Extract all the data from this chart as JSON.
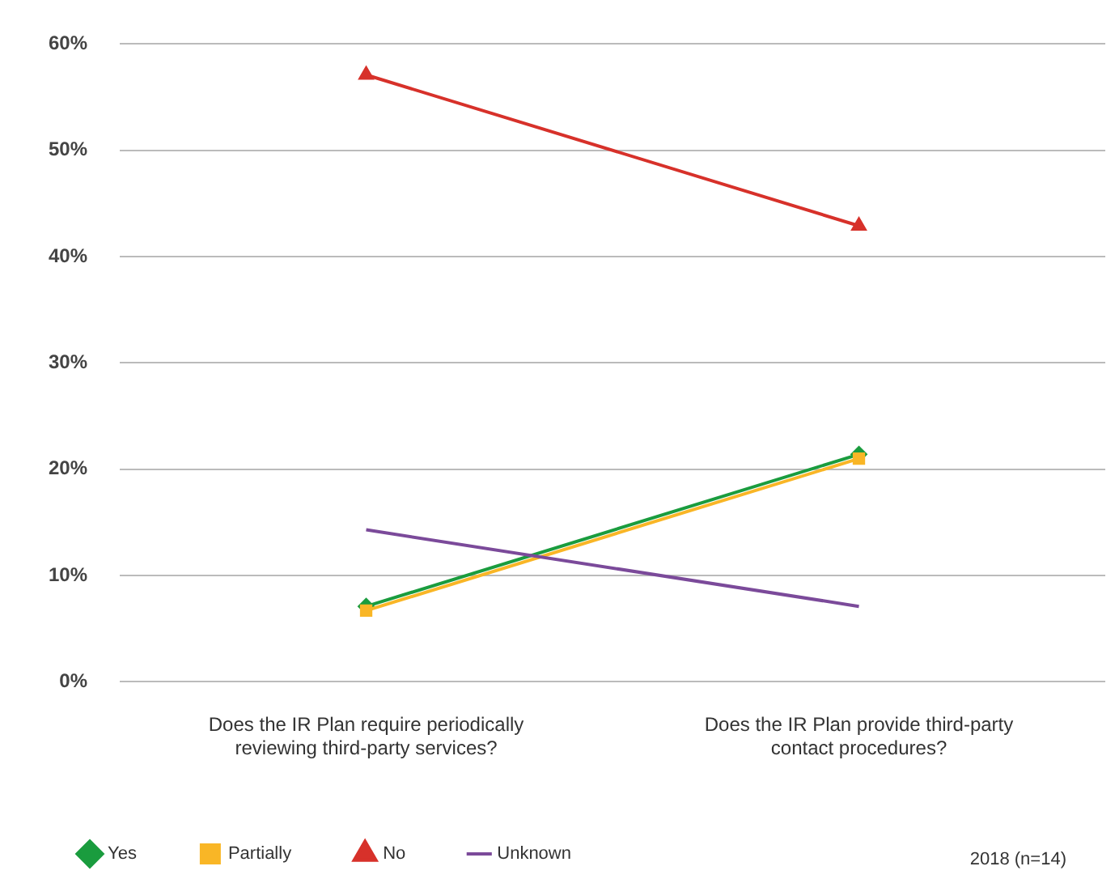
{
  "chart_data": {
    "type": "line",
    "categories": [
      "Does the IR Plan require periodically reviewing third-party services?",
      "Does the IR Plan provide third-party contact procedures?"
    ],
    "series": [
      {
        "name": "Yes",
        "color": "#1a9c3e",
        "values": [
          7.1,
          21.4
        ],
        "marker": "diamond"
      },
      {
        "name": "Partially",
        "color": "#f9b626",
        "values": [
          6.7,
          21.0
        ],
        "marker": "square"
      },
      {
        "name": "No",
        "color": "#d7312a",
        "values": [
          57.1,
          42.9
        ],
        "marker": "triangle"
      },
      {
        "name": "Unknown",
        "color": "#7b4a9a",
        "values": [
          14.3,
          7.1
        ],
        "marker": "none"
      }
    ],
    "ylim": [
      0,
      60
    ],
    "yticks": [
      {
        "value": 0,
        "label": "0%"
      },
      {
        "value": 10,
        "label": "10%"
      },
      {
        "value": 20,
        "label": "20%"
      },
      {
        "value": 30,
        "label": "30%"
      },
      {
        "value": 40,
        "label": "40%"
      },
      {
        "value": 50,
        "label": "50%"
      },
      {
        "value": 60,
        "label": "60%"
      }
    ],
    "grid": "y",
    "legend": "bottom",
    "line_style": "solid",
    "annotations": [
      "2018 (n=14)"
    ]
  }
}
